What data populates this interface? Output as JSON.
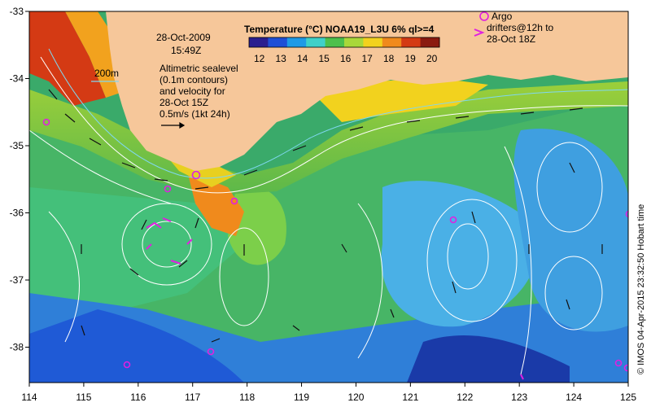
{
  "map": {
    "title": "Temperature (°C) NOAA19_L3U 6% ql>=4",
    "colorbar_ticks": [
      "12",
      "13",
      "14",
      "15",
      "16",
      "17",
      "18",
      "19",
      "20"
    ],
    "colorbar_colors": [
      "#2a1e8f",
      "#1f4fd6",
      "#1f9ae6",
      "#3fd0c8",
      "#4cc04c",
      "#a8d83a",
      "#f2d21e",
      "#f08a1c",
      "#d43a14",
      "#8a1a10"
    ],
    "date": "28-Oct-2009",
    "time": "15:49Z",
    "depth_label": "200m",
    "note_lines": [
      "Altimetric sealevel",
      "(0.1m contours)",
      "and velocity for",
      "28-Oct 15Z",
      "0.5m/s (1kt 24h)"
    ],
    "argo_label": "Argo",
    "drifters_lines": [
      "drifters@12h to",
      "28-Oct 18Z"
    ],
    "credit": "© IMOS 04-Apr-2015 23:32:50 Hobart time",
    "x_ticks": [
      "114",
      "115",
      "116",
      "117",
      "118",
      "119",
      "120",
      "121",
      "122",
      "123",
      "124",
      "125"
    ],
    "y_ticks": [
      "-33",
      "-34",
      "-35",
      "-36",
      "-37",
      "-38"
    ],
    "colors": {
      "land": "#f6c79a",
      "argo": "#e020e0",
      "contour": "#ffffff",
      "isobath": "#7fd8f0"
    }
  }
}
